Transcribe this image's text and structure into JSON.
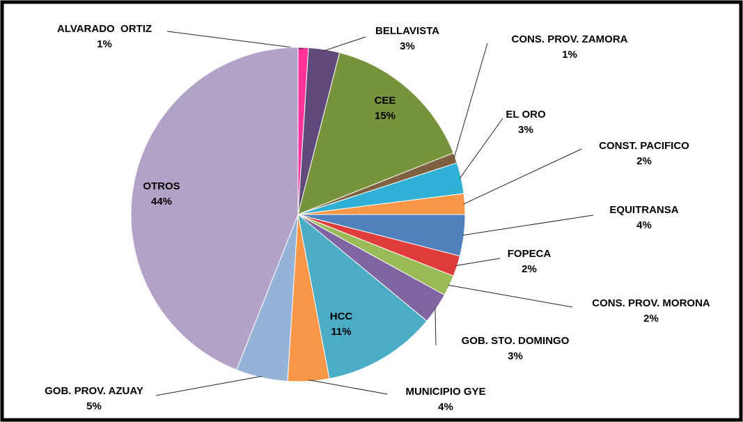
{
  "chart_data": {
    "type": "pie",
    "categories": [
      "ALVARADO  ORTIZ",
      "BELLAVISTA",
      "CEE",
      "CONS. PROV. ZAMORA",
      "EL ORO",
      "CONST. PACIFICO",
      "EQUITRANSA",
      "FOPECA",
      "CONS. PROV. MORONA",
      "GOB. STO. DOMINGO",
      "HCC",
      "MUNICIPIO GYE",
      "GOB. PROV. AZUAY",
      "OTROS"
    ],
    "values": [
      1,
      3,
      15,
      1,
      3,
      2,
      4,
      2,
      2,
      3,
      11,
      4,
      5,
      44
    ],
    "value_labels": [
      "1%",
      "3%",
      "15%",
      "1%",
      "3%",
      "2%",
      "4%",
      "2%",
      "2%",
      "3%",
      "11%",
      "4%",
      "5%",
      "44%"
    ],
    "colors": [
      "#ff3399",
      "#604a7b",
      "#77933c",
      "#7f6040",
      "#31b0d5",
      "#f79646",
      "#4f81bd",
      "#e03c3c",
      "#9bbb59",
      "#8064a2",
      "#4bacc6",
      "#f79646",
      "#95b3d7",
      "#b3a2c7"
    ]
  }
}
